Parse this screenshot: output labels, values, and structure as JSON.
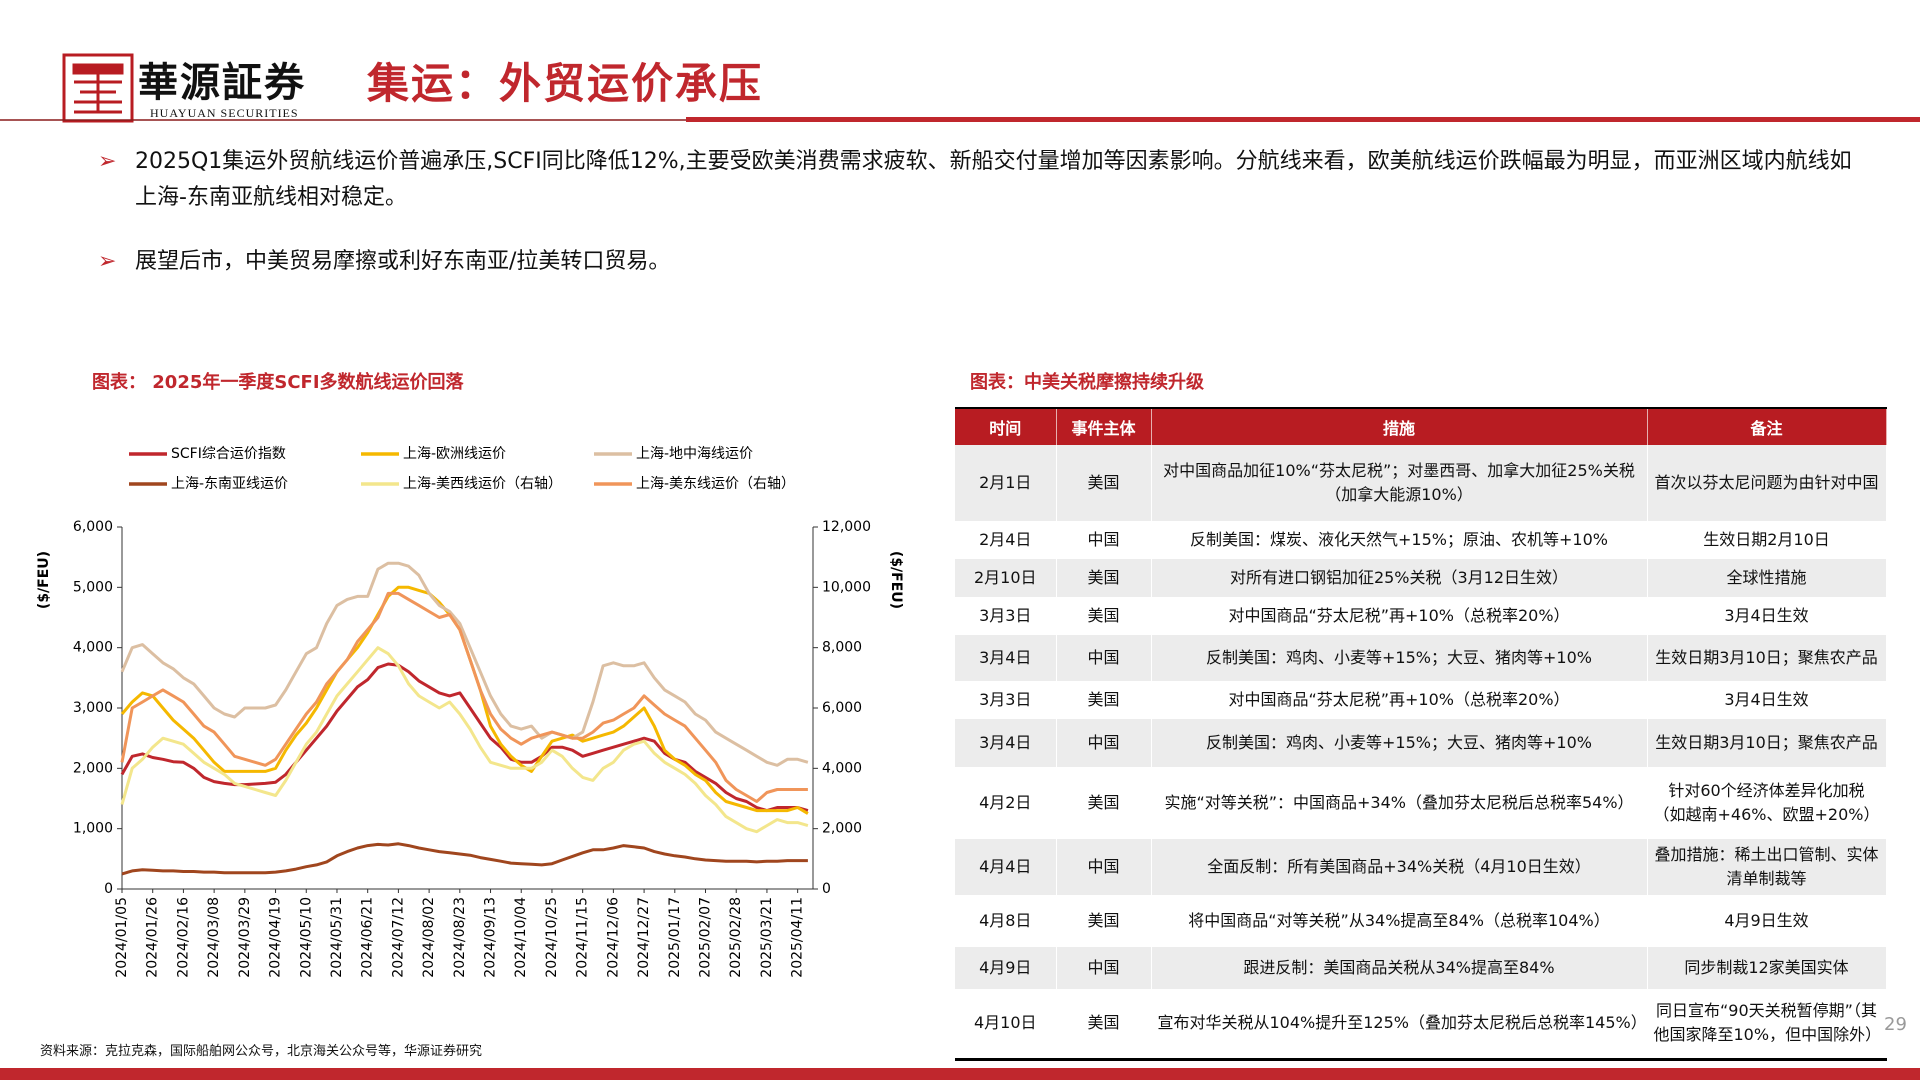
{
  "header": {
    "logo_cn": "華源証券",
    "logo_en": "HUAYUAN SECURITIES",
    "title": "集运：外贸运价承压"
  },
  "bullets": [
    "2025Q1集运外贸航线运价普遍承压,SCFI同比降低12%,主要受欧美消费需求疲软、新船交付量增加等因素影响。分航线来看，欧美航线运价跌幅最为明显，而亚洲区域内航线如上海-东南亚航线相对稳定。",
    "展望后市，中美贸易摩擦或利好东南亚/拉美转口贸易。"
  ],
  "chart_data": {
    "type": "line",
    "title": "图表： 2025年一季度SCFI多数航线运价回落",
    "y_label": "($/FEU)",
    "y2_label": "($/FEU)",
    "categories": [
      "2024/01/05",
      null,
      null,
      "2024/01/26",
      null,
      null,
      "2024/02/16",
      null,
      null,
      "2024/03/08",
      null,
      null,
      "2024/03/29",
      null,
      null,
      "2024/04/19",
      null,
      null,
      "2024/05/10",
      null,
      null,
      "2024/05/31",
      null,
      null,
      "2024/06/21",
      null,
      null,
      "2024/07/12",
      null,
      null,
      "2024/08/02",
      null,
      null,
      "2024/08/23",
      null,
      null,
      "2024/09/13",
      null,
      null,
      "2024/10/04",
      null,
      null,
      "2024/10/25",
      null,
      null,
      "2024/11/15",
      null,
      null,
      "2024/12/06",
      null,
      null,
      "2024/12/27",
      null,
      null,
      "2025/01/17",
      null,
      null,
      "2025/02/07",
      null,
      null,
      "2025/02/28",
      null,
      null,
      "2025/03/21",
      null,
      null,
      "2025/04/11",
      null
    ],
    "ylim": [
      0,
      6000
    ],
    "yticks": [
      0,
      {
        "value": 1000,
        "label": "1,000"
      },
      {
        "value": 2000,
        "label": "2,000"
      },
      {
        "value": 3000,
        "label": "3,000"
      },
      {
        "value": 4000,
        "label": "4,000"
      },
      {
        "value": 5000,
        "label": "5,000"
      },
      {
        "value": 6000,
        "label": "6,000"
      }
    ],
    "y2lim": [
      0,
      12000
    ],
    "y2ticks": [
      0,
      {
        "value": 2000,
        "label": "2,000"
      },
      {
        "value": 4000,
        "label": "4,000"
      },
      {
        "value": 6000,
        "label": "6,000"
      },
      {
        "value": 8000,
        "label": "8,000"
      },
      {
        "value": 10000,
        "label": "10,000"
      },
      {
        "value": 12000,
        "label": "12,000"
      }
    ],
    "grid": false,
    "series": [
      {
        "name": "SCFI综合运价指数",
        "color": "#c0272d",
        "values": [
          1900,
          2200,
          2240,
          2180,
          2150,
          2110,
          2100,
          2000,
          1850,
          1780,
          1750,
          1730,
          1730,
          1740,
          1750,
          1770,
          1900,
          2100,
          2300,
          2500,
          2700,
          2950,
          3150,
          3350,
          3470,
          3670,
          3730,
          3710,
          3600,
          3450,
          3350,
          3250,
          3200,
          3250,
          3000,
          2750,
          2500,
          2350,
          2150,
          2100,
          2100,
          2200,
          2350,
          2350,
          2300,
          2200,
          2250,
          2300,
          2350,
          2400,
          2450,
          2500,
          2450,
          2250,
          2150,
          2100,
          1950,
          1850,
          1750,
          1600,
          1500,
          1450,
          1350,
          1300,
          1350,
          1350,
          1350,
          1300
        ]
      },
      {
        "name": "上海-欧洲线运价",
        "color": "#f5b800",
        "values": [
          2900,
          3100,
          3250,
          3200,
          3000,
          2800,
          2650,
          2500,
          2300,
          2100,
          1950,
          1950,
          1950,
          1950,
          1950,
          2000,
          2300,
          2550,
          2750,
          3000,
          3300,
          3600,
          3800,
          4000,
          4250,
          4550,
          4850,
          5000,
          5000,
          4950,
          4900,
          4750,
          4550,
          4300,
          3800,
          3300,
          2700,
          2400,
          2200,
          2050,
          1950,
          2200,
          2450,
          2500,
          2550,
          2450,
          2500,
          2550,
          2600,
          2700,
          2850,
          3000,
          2700,
          2300,
          2150,
          2050,
          1900,
          1800,
          1600,
          1450,
          1400,
          1350,
          1300,
          1300,
          1300,
          1300,
          1350,
          1250
        ]
      },
      {
        "name": "上海-地中海线运价",
        "color": "#dcbfa2",
        "values": [
          3600,
          4000,
          4050,
          3900,
          3750,
          3650,
          3500,
          3400,
          3200,
          3000,
          2900,
          2850,
          3000,
          3000,
          3000,
          3050,
          3300,
          3600,
          3900,
          4000,
          4400,
          4700,
          4800,
          4850,
          4850,
          5300,
          5400,
          5400,
          5350,
          5200,
          4900,
          4700,
          4600,
          4400,
          4000,
          3600,
          3200,
          2900,
          2700,
          2650,
          2700,
          2500,
          2600,
          2550,
          2500,
          2600,
          3100,
          3700,
          3750,
          3700,
          3700,
          3750,
          3500,
          3300,
          3200,
          3100,
          2900,
          2800,
          2600,
          2500,
          2400,
          2300,
          2200,
          2100,
          2050,
          2150,
          2150,
          2100
        ]
      },
      {
        "name": "上海-东南亚线运价",
        "color": "#a0461e",
        "values": [
          250,
          300,
          320,
          310,
          300,
          300,
          290,
          290,
          280,
          280,
          270,
          270,
          270,
          270,
          270,
          280,
          300,
          330,
          370,
          400,
          450,
          550,
          620,
          680,
          720,
          740,
          730,
          750,
          720,
          680,
          650,
          620,
          600,
          580,
          560,
          520,
          490,
          460,
          430,
          420,
          410,
          400,
          420,
          480,
          540,
          600,
          650,
          650,
          680,
          720,
          700,
          680,
          620,
          580,
          550,
          530,
          500,
          480,
          470,
          460,
          460,
          460,
          450,
          460,
          460,
          470,
          470,
          470
        ]
      },
      {
        "name": "上海-美西线运价（右轴）",
        "color": "#f3e68c",
        "axis": "y2",
        "values": [
          2800,
          4000,
          4300,
          4700,
          5000,
          4900,
          4800,
          4500,
          4200,
          4000,
          3800,
          3500,
          3400,
          3300,
          3200,
          3100,
          3600,
          4200,
          4800,
          5200,
          5800,
          6400,
          6800,
          7200,
          7600,
          8000,
          7800,
          7400,
          6800,
          6400,
          6200,
          6000,
          6200,
          5800,
          5300,
          4700,
          4200,
          4100,
          4000,
          4000,
          4000,
          4200,
          4600,
          4400,
          4000,
          3700,
          3600,
          4000,
          4200,
          4600,
          4800,
          4900,
          4500,
          4200,
          4000,
          3800,
          3500,
          3100,
          2800,
          2400,
          2200,
          2000,
          1900,
          2100,
          2300,
          2200,
          2200,
          2100
        ]
      },
      {
        "name": "上海-美东线运价（右轴）",
        "color": "#f0955a",
        "axis": "y2",
        "values": [
          4200,
          6000,
          6200,
          6400,
          6600,
          6400,
          6200,
          5800,
          5400,
          5200,
          4800,
          4400,
          4300,
          4200,
          4100,
          4300,
          4800,
          5300,
          5800,
          6200,
          6800,
          7200,
          7600,
          8200,
          8600,
          9000,
          9800,
          9800,
          9600,
          9400,
          9200,
          9000,
          9100,
          8600,
          7600,
          6600,
          5800,
          5300,
          5000,
          4800,
          5000,
          5100,
          5200,
          5100,
          5000,
          5000,
          5200,
          5500,
          5600,
          5800,
          6000,
          6400,
          6100,
          5800,
          5600,
          5400,
          5000,
          4600,
          4200,
          3600,
          3300,
          3100,
          2900,
          3200,
          3300,
          3300,
          3300,
          3300
        ]
      }
    ]
  },
  "table": {
    "title": "图表：中美关税摩擦持续升级",
    "columns": [
      "时间",
      "事件主体",
      "措施",
      "备注"
    ],
    "rows": [
      [
        "2月1日",
        "美国",
        "对中国商品加征10%“芬太尼税”；对墨西哥、加拿大加征25%关税（加拿大能源10%）",
        "首次以芬太尼问题为由针对中国"
      ],
      [
        "2月4日",
        "中国",
        "反制美国：煤炭、液化天然气+15%；原油、农机等+10%",
        "生效日期2月10日"
      ],
      [
        "2月10日",
        "美国",
        "对所有进口钢铝加征25%关税（3月12日生效）",
        "全球性措施"
      ],
      [
        "3月3日",
        "美国",
        "对中国商品“芬太尼税”再+10%（总税率20%）",
        "3月4日生效"
      ],
      [
        "3月4日",
        "中国",
        "反制美国：鸡肉、小麦等+15%；大豆、猪肉等+10%",
        "生效日期3月10日；聚焦农产品"
      ],
      [
        "3月3日",
        "美国",
        "对中国商品“芬太尼税”再+10%（总税率20%）",
        "3月4日生效"
      ],
      [
        "3月4日",
        "中国",
        "反制美国：鸡肉、小麦等+15%；大豆、猪肉等+10%",
        "生效日期3月10日；聚焦农产品"
      ],
      [
        "4月2日",
        "美国",
        "实施“对等关税”：中国商品+34%（叠加芬太尼税后总税率54%）",
        "针对60个经济体差异化加税（如越南+46%、欧盟+20%）"
      ],
      [
        "4月4日",
        "中国",
        "全面反制：所有美国商品+34%关税（4月10日生效）",
        "叠加措施：稀土出口管制、实体清单制裁等"
      ],
      [
        "4月8日",
        "美国",
        "将中国商品“对等关税”从34%提高至84%（总税率104%）",
        "4月9日生效"
      ],
      [
        "4月9日",
        "中国",
        "跟进反制：美国商品关税从34%提高至84%",
        "同步制裁12家美国实体"
      ],
      [
        "4月10日",
        "美国",
        "宣布对华关税从104%提升至125%（叠加芬太尼税后总税率145%）",
        "同日宣布“90天关税暂停期”（其他国家降至10%，但中国除外）"
      ]
    ]
  },
  "source": "资料来源：克拉克森，国际船舶网公众号，北京海关公众号等，华源证券研究",
  "page_number": 29
}
